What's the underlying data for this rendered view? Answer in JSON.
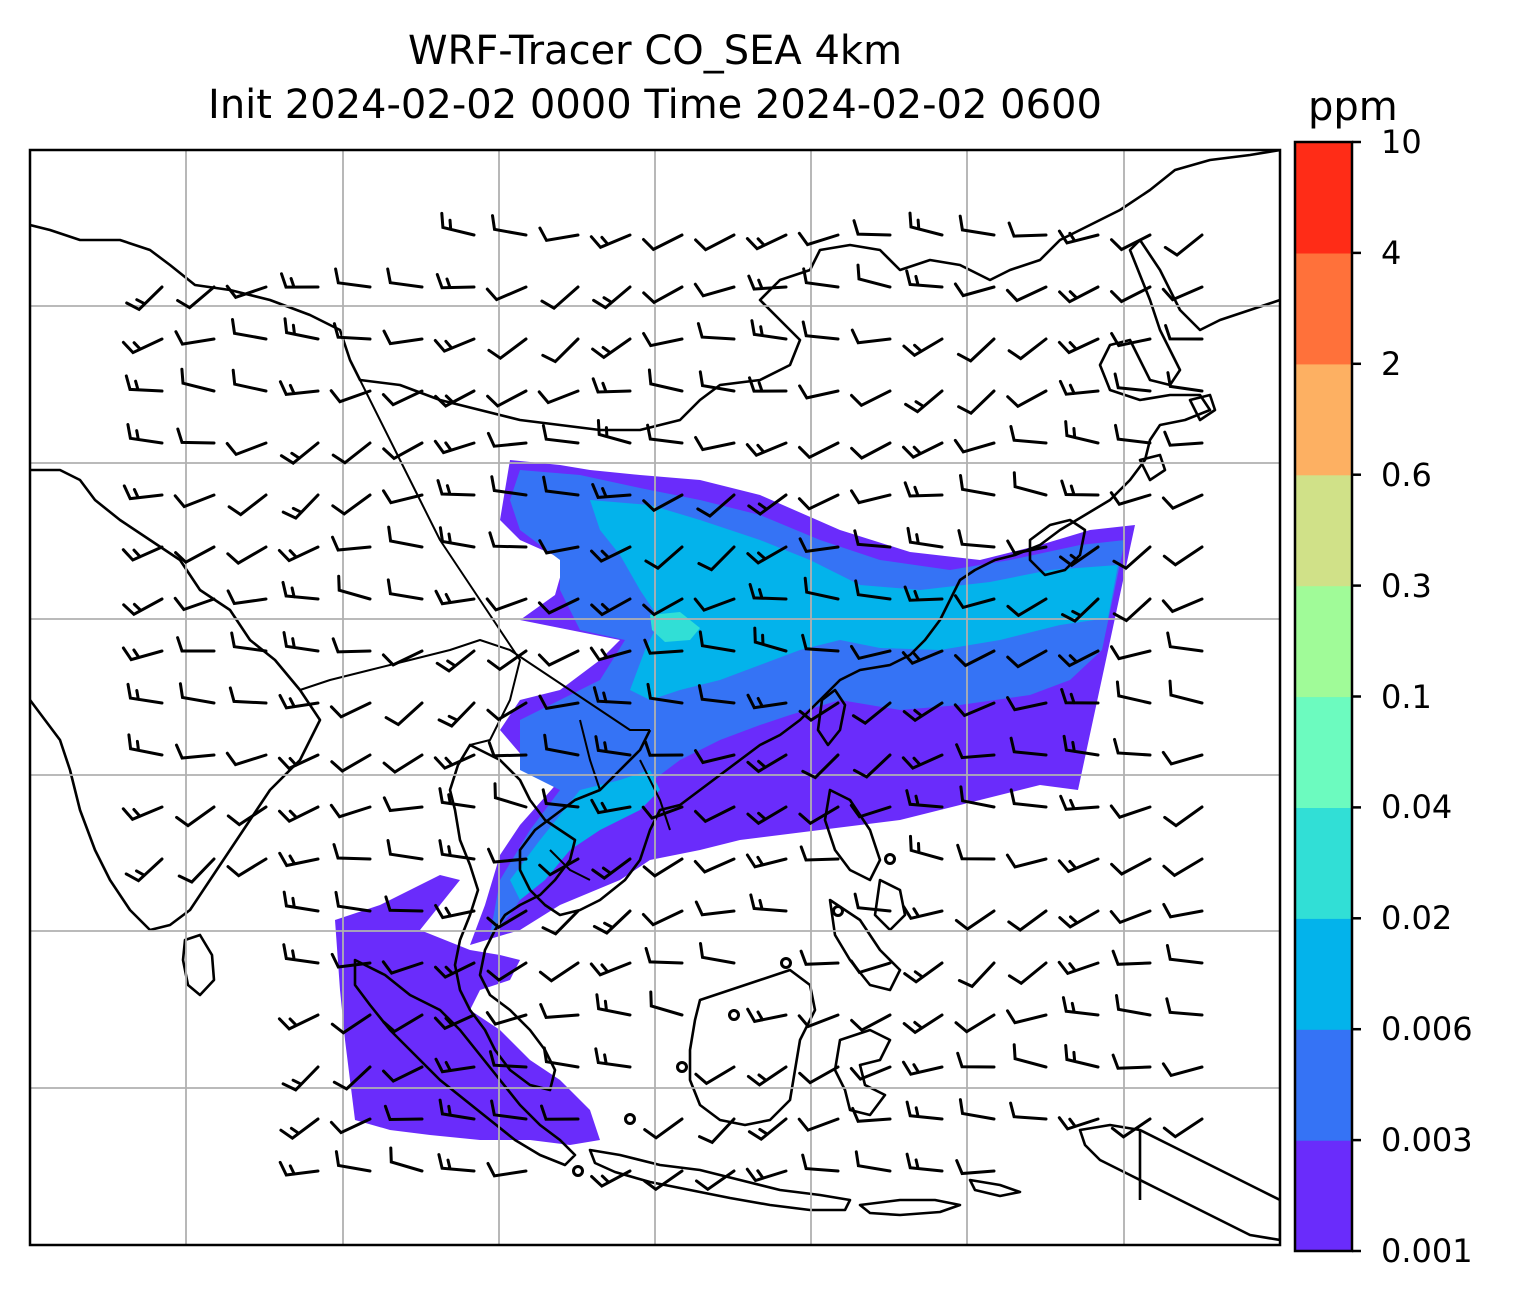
{
  "title_line1": "WRF-Tracer CO_SEA 4km",
  "title_line2": "Init 2024-02-02 0000 Time 2024-02-02 0600",
  "colorbar": {
    "unit": "ppm",
    "levels": [
      "0.001",
      "0.003",
      "0.006",
      "0.02",
      "0.04",
      "0.1",
      "0.3",
      "0.6",
      "2",
      "4",
      "10"
    ],
    "colors": [
      "#6a2cfb",
      "#3573f5",
      "#03b3eb",
      "#31dfd6",
      "#6cfbbf",
      "#a0fb98",
      "#d0e188",
      "#fdb062",
      "#ff713a",
      "#ff2c17"
    ]
  },
  "map": {
    "gridlines": true,
    "background": "#ffffff",
    "coastline_color": "#000000",
    "wind_barb_color": "#000000"
  }
}
